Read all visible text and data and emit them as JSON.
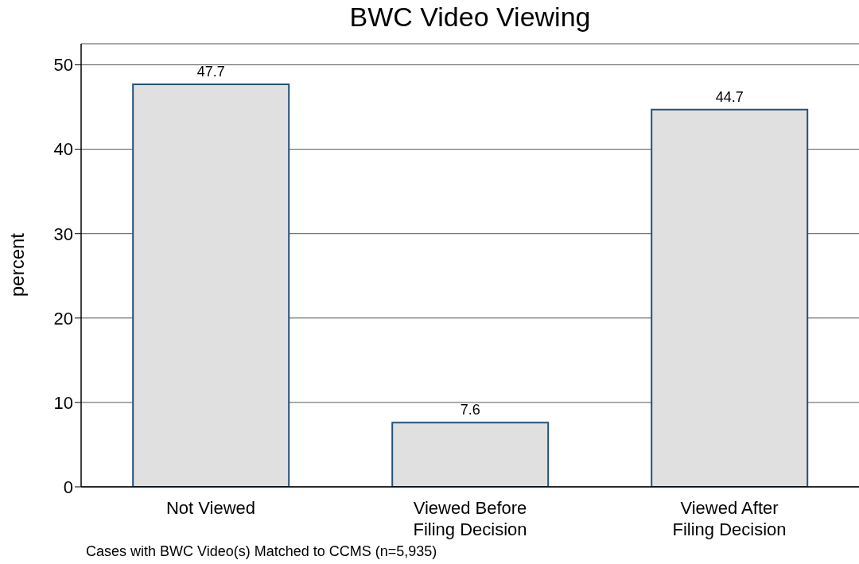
{
  "chart_data": {
    "type": "bar",
    "title": "BWC Video Viewing",
    "ylabel": "percent",
    "categories": [
      "Not Viewed",
      "Viewed Before\nFiling Decision",
      "Viewed After\nFiling Decision"
    ],
    "values": [
      47.7,
      7.6,
      44.7
    ],
    "color": "#e0e0e0",
    "ylim": [
      0,
      52.5
    ],
    "yticks": [
      0,
      10,
      20,
      30,
      40,
      50
    ],
    "grid": "y",
    "data_labels": true,
    "annotations": [
      "Cases with BWC Video(s) Matched to CCMS (n=5,935)"
    ]
  }
}
